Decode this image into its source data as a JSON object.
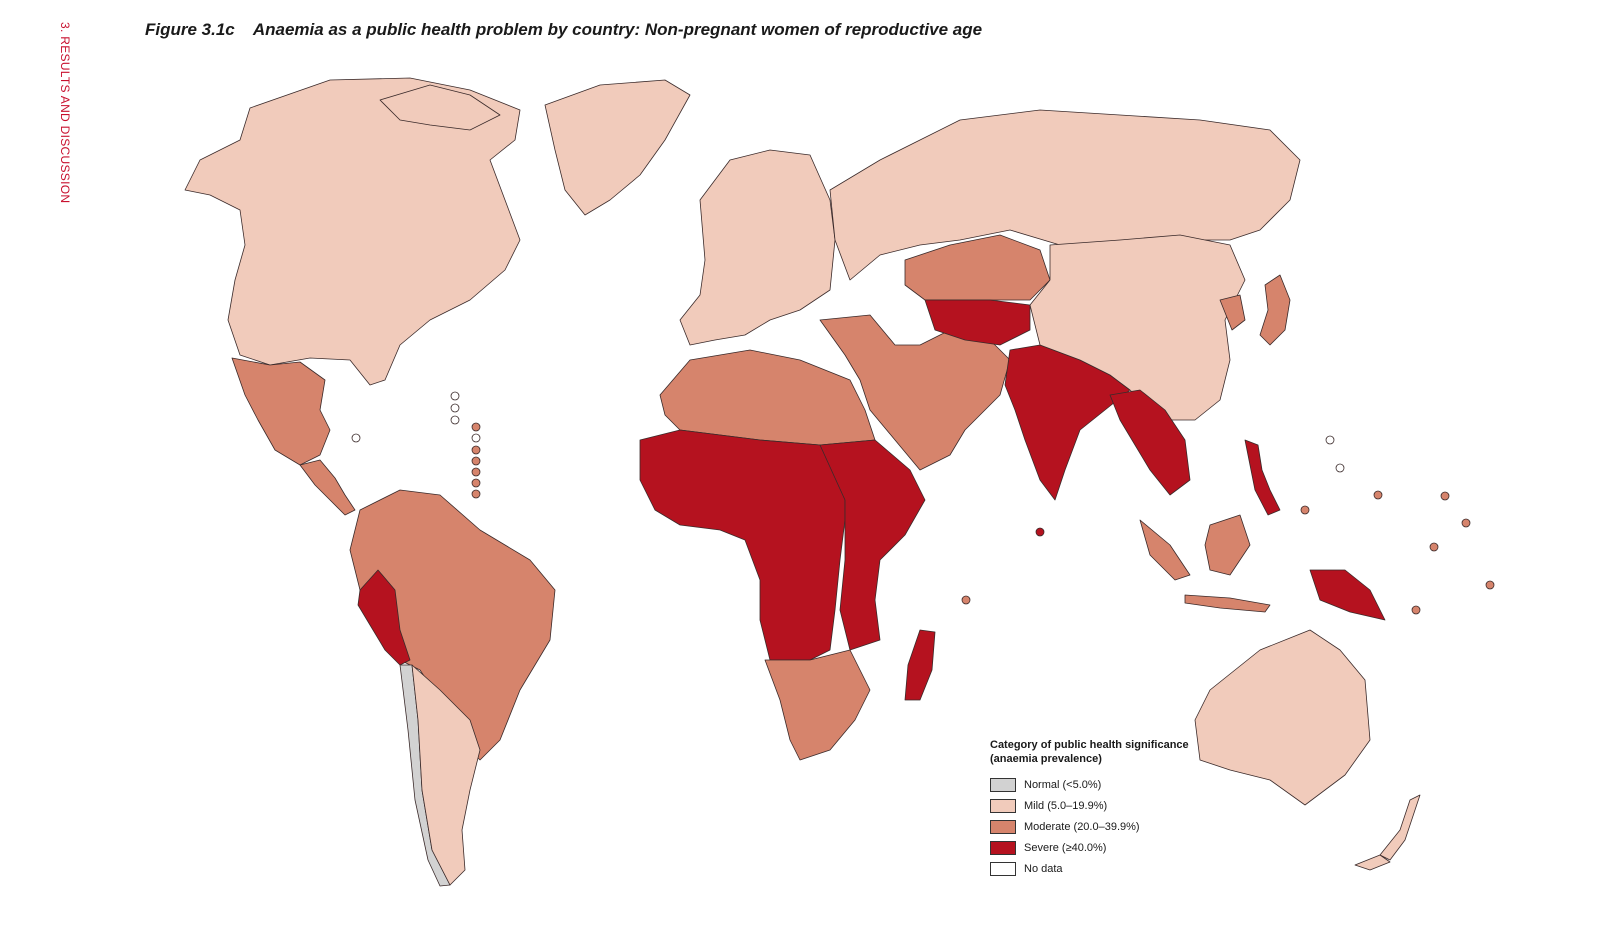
{
  "side_label": "3. RESULTS AND DISCUSSION",
  "figure": {
    "number": "Figure 3.1c",
    "title": "Anaemia as a public health problem by country: Non-pregnant women of reproductive age"
  },
  "legend": {
    "title": "Category of public health significance (anaemia prevalence)",
    "categories": [
      {
        "key": "normal",
        "label": "Normal (<5.0%)",
        "color": "#d2d2d2"
      },
      {
        "key": "mild",
        "label": "Mild (5.0–19.9%)",
        "color": "#f1cbbb"
      },
      {
        "key": "moderate",
        "label": "Moderate (20.0–39.9%)",
        "color": "#d6846c"
      },
      {
        "key": "severe",
        "label": "Severe (≥40.0%)",
        "color": "#b5121f"
      },
      {
        "key": "nodata",
        "label": "No data",
        "color": "#ffffff"
      }
    ]
  },
  "regions": {
    "north_america": "mild",
    "greenland": "mild",
    "mexico": "moderate",
    "central_america": "moderate",
    "south_america": "moderate",
    "peru_bolivia": "severe",
    "chile": "normal",
    "argentina": "mild",
    "europe": "mild",
    "russia": "mild",
    "north_africa": "moderate",
    "west_central_africa": "severe",
    "east_africa": "severe",
    "southern_africa": "moderate",
    "madagascar": "severe",
    "middle_east": "moderate",
    "kazakhstan": "moderate",
    "central_asia": "severe",
    "south_asia": "severe",
    "china_mongolia": "mild",
    "southeast_asia": "severe",
    "indonesia": "moderate",
    "papua": "severe",
    "japan_korea": "moderate",
    "australia": "mild",
    "new_zealand": "mild"
  }
}
